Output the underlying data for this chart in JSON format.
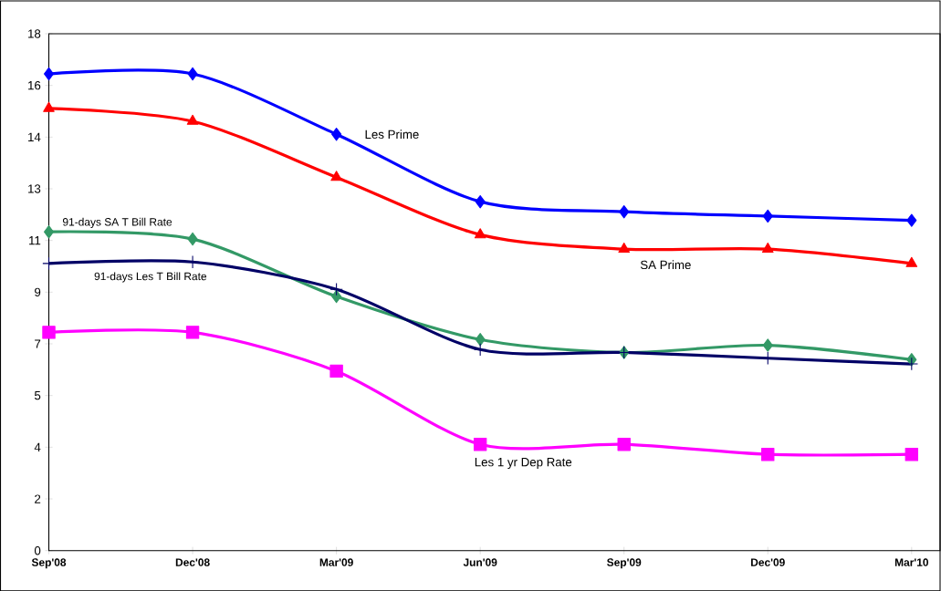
{
  "chart_data": {
    "type": "line",
    "categories": [
      "Sep'08",
      "Dec'08",
      "Mar'09",
      "Jun'09",
      "Sep'09",
      "Dec'09",
      "Mar'10"
    ],
    "ylim": [
      0,
      18
    ],
    "yticks": [
      {
        "value": 0,
        "label": "0"
      },
      {
        "value": 1.8,
        "label": "2"
      },
      {
        "value": 3.6,
        "label": "4"
      },
      {
        "value": 5.4,
        "label": "5"
      },
      {
        "value": 7.2,
        "label": "7"
      },
      {
        "value": 9,
        "label": "9"
      },
      {
        "value": 10.8,
        "label": "11"
      },
      {
        "value": 12.6,
        "label": "13"
      },
      {
        "value": 14.4,
        "label": "14"
      },
      {
        "value": 16.2,
        "label": "16"
      },
      {
        "value": 18,
        "label": "18"
      }
    ],
    "grid": false,
    "series": [
      {
        "name": "Les  Prime",
        "color": "#0000ff",
        "marker": "diamond",
        "values": [
          16.6,
          16.6,
          14.5,
          12.15,
          11.8,
          11.65,
          11.5
        ]
      },
      {
        "name": "SA Prime",
        "color": "#ff0000",
        "marker": "triangle",
        "values": [
          15.4,
          14.95,
          13.0,
          11.0,
          10.5,
          10.5,
          10.0
        ]
      },
      {
        "name": "91-days SA T Bill Rate",
        "color": "#339966",
        "marker": "diamond",
        "values": [
          11.1,
          10.85,
          8.85,
          7.35,
          6.9,
          7.15,
          6.65
        ]
      },
      {
        "name": "91-days Les T Bill Rate",
        "color": "#000066",
        "marker": "cross",
        "values": [
          10.0,
          10.05,
          9.1,
          7.0,
          6.9,
          6.7,
          6.5
        ]
      },
      {
        "name": "Les 1 yr Dep Rate",
        "color": "#ff00ff",
        "marker": "square",
        "values": [
          7.6,
          7.6,
          6.25,
          3.7,
          3.7,
          3.35,
          3.35
        ]
      }
    ]
  }
}
